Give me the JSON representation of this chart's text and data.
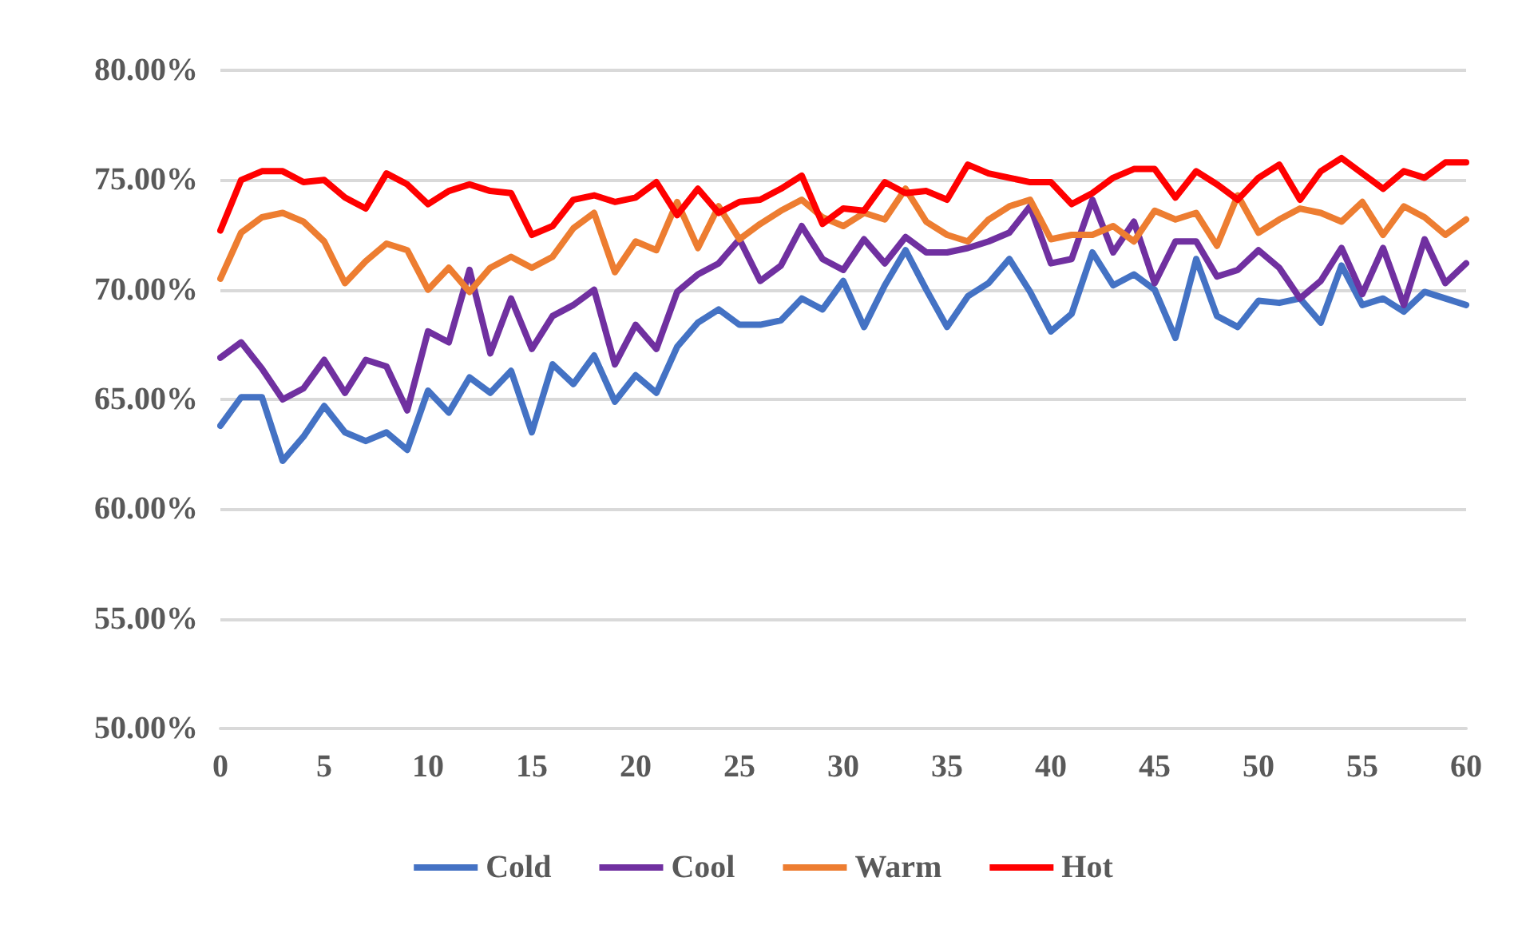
{
  "chart_data": {
    "type": "line",
    "x": [
      0,
      1,
      2,
      3,
      4,
      5,
      6,
      7,
      8,
      9,
      10,
      11,
      12,
      13,
      14,
      15,
      16,
      17,
      18,
      19,
      20,
      21,
      22,
      23,
      24,
      25,
      26,
      27,
      28,
      29,
      30,
      31,
      32,
      33,
      34,
      35,
      36,
      37,
      38,
      39,
      40,
      41,
      42,
      43,
      44,
      45,
      46,
      47,
      48,
      49,
      50,
      51,
      52,
      53,
      54,
      55,
      56,
      57,
      58,
      59,
      60
    ],
    "series": [
      {
        "name": "Cold",
        "color": "#4472c4",
        "values": [
          63.8,
          65.1,
          65.1,
          62.2,
          63.3,
          64.7,
          63.5,
          63.1,
          63.5,
          62.7,
          65.4,
          64.4,
          66.0,
          65.3,
          66.3,
          63.5,
          66.6,
          65.7,
          67.0,
          64.9,
          66.1,
          65.3,
          67.4,
          68.5,
          69.1,
          68.4,
          68.4,
          68.6,
          69.6,
          69.1,
          70.4,
          68.3,
          70.2,
          71.8,
          70.0,
          68.3,
          69.7,
          70.3,
          71.4,
          69.9,
          68.1,
          68.9,
          71.7,
          70.2,
          70.7,
          70.0,
          67.8,
          71.4,
          68.8,
          68.3,
          69.5,
          69.4,
          69.6,
          68.5,
          71.1,
          69.3,
          69.6,
          69.0,
          69.9,
          69.6,
          69.3
        ]
      },
      {
        "name": "Cool",
        "color": "#7030a0",
        "values": [
          66.9,
          67.6,
          66.4,
          65.0,
          65.5,
          66.8,
          65.3,
          66.8,
          66.5,
          64.5,
          68.1,
          67.6,
          70.9,
          67.1,
          69.6,
          67.3,
          68.8,
          69.3,
          70.0,
          66.6,
          68.4,
          67.3,
          69.9,
          70.7,
          71.2,
          72.3,
          70.4,
          71.1,
          72.9,
          71.4,
          70.9,
          72.3,
          71.2,
          72.4,
          71.7,
          71.7,
          71.9,
          72.2,
          72.6,
          73.8,
          71.2,
          71.4,
          74.1,
          71.7,
          73.1,
          70.3,
          72.2,
          72.2,
          70.6,
          70.9,
          71.8,
          71.0,
          69.6,
          70.4,
          71.9,
          69.8,
          71.9,
          69.3,
          72.3,
          70.3,
          71.2
        ]
      },
      {
        "name": "Warm",
        "color": "#ed7d31",
        "values": [
          70.5,
          72.6,
          73.3,
          73.5,
          73.1,
          72.2,
          70.3,
          71.3,
          72.1,
          71.8,
          70.0,
          71.0,
          69.9,
          71.0,
          71.5,
          71.0,
          71.5,
          72.8,
          73.5,
          70.8,
          72.2,
          71.8,
          74.0,
          71.9,
          73.8,
          72.3,
          73.0,
          73.6,
          74.1,
          73.3,
          72.9,
          73.5,
          73.2,
          74.6,
          73.1,
          72.5,
          72.2,
          73.2,
          73.8,
          74.1,
          72.3,
          72.5,
          72.5,
          72.9,
          72.2,
          73.6,
          73.2,
          73.5,
          72.0,
          74.3,
          72.6,
          73.2,
          73.7,
          73.5,
          73.1,
          74.0,
          72.5,
          73.8,
          73.3,
          72.5,
          73.2
        ]
      },
      {
        "name": "Hot",
        "color": "#ff0000",
        "values": [
          72.7,
          75.0,
          75.4,
          75.4,
          74.9,
          75.0,
          74.2,
          73.7,
          75.3,
          74.8,
          73.9,
          74.5,
          74.8,
          74.5,
          74.4,
          72.5,
          72.9,
          74.1,
          74.3,
          74.0,
          74.2,
          74.9,
          73.4,
          74.6,
          73.5,
          74.0,
          74.1,
          74.6,
          75.2,
          73.0,
          73.7,
          73.6,
          74.9,
          74.4,
          74.5,
          74.1,
          75.7,
          75.3,
          75.1,
          74.9,
          74.9,
          73.9,
          74.4,
          75.1,
          75.5,
          75.5,
          74.2,
          75.4,
          74.8,
          74.1,
          75.1,
          75.7,
          74.1,
          75.4,
          76.0,
          75.3,
          74.6,
          75.4,
          75.1,
          75.8,
          75.8
        ]
      }
    ],
    "xlim": [
      0,
      60
    ],
    "xticks": [
      0,
      5,
      10,
      15,
      20,
      25,
      30,
      35,
      40,
      45,
      50,
      55,
      60
    ],
    "ylim": [
      50,
      80
    ],
    "yticks": [
      {
        "value": 50,
        "label": "50.00%"
      },
      {
        "value": 55,
        "label": "55.00%"
      },
      {
        "value": 60,
        "label": "60.00%"
      },
      {
        "value": 65,
        "label": "65.00%"
      },
      {
        "value": 70,
        "label": "70.00%"
      },
      {
        "value": 75,
        "label": "75.00%"
      },
      {
        "value": 80,
        "label": "80.00%"
      }
    ],
    "grid": "y",
    "legend": "bottom",
    "marker": "none",
    "line_style": "solid"
  }
}
